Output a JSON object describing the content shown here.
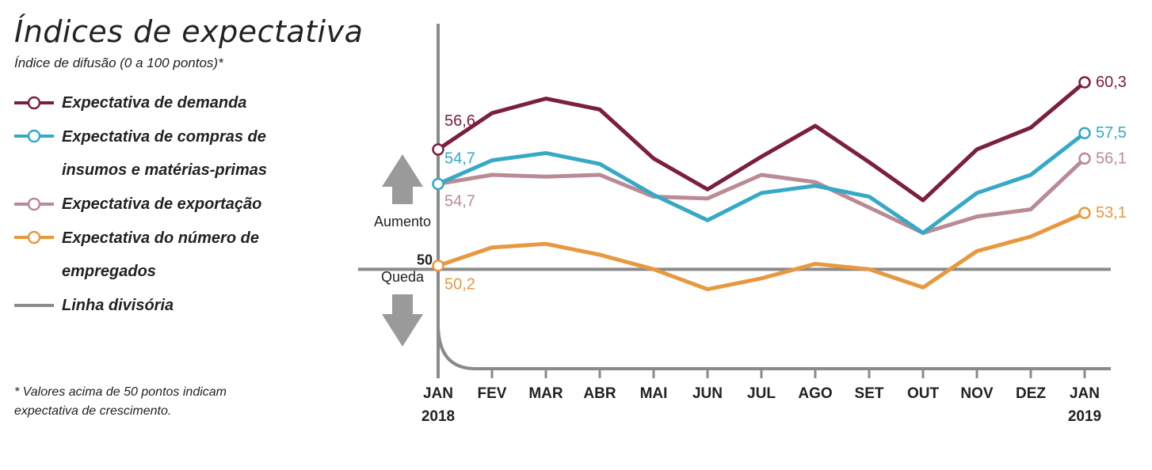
{
  "title": "Índices de expectativa",
  "subtitle": "Índice de difusão (0 a 100 pontos)*",
  "footnote": "* Valores acima de 50 pontos indicam expectativa de crescimento.",
  "legend": [
    {
      "label": "Expectativa de demanda",
      "color": "#7b1e3f"
    },
    {
      "label": "Expectativa de compras de insumos e matérias-primas",
      "color": "#36a9c6"
    },
    {
      "label": "Expectativa de exportação",
      "color": "#b98b94"
    },
    {
      "label": "Expectativa do número de empregados",
      "color": "#e8983e"
    },
    {
      "label": "Linha divisória",
      "color": "#8a8a8a"
    }
  ],
  "annotations": {
    "up": "Aumento",
    "down": "Queda",
    "fifty": "50"
  },
  "chart_data": {
    "type": "line",
    "x": [
      "JAN",
      "FEV",
      "MAR",
      "ABR",
      "MAI",
      "JUN",
      "JUL",
      "AGO",
      "SET",
      "OUT",
      "NOV",
      "DEZ",
      "JAN"
    ],
    "x_sub": [
      "2018",
      "",
      "",
      "",
      "",
      "",
      "",
      "",
      "",
      "",
      "",
      "",
      "2019"
    ],
    "divider": 50,
    "ylim": [
      44,
      63
    ],
    "grid": false,
    "legend_position": "left",
    "series": [
      {
        "name": "Expectativa de demanda",
        "color": "#7b1e3f",
        "values": [
          56.6,
          58.6,
          59.4,
          58.8,
          56.1,
          54.4,
          56.2,
          57.9,
          55.9,
          53.8,
          56.6,
          57.8,
          60.3
        ],
        "label_start": "56,6",
        "label_end": "60,3"
      },
      {
        "name": "Expectativa de compras de insumos e matérias-primas",
        "color": "#36a9c6",
        "values": [
          54.7,
          56.0,
          56.4,
          55.8,
          54.1,
          52.7,
          54.2,
          54.6,
          54.0,
          52.0,
          54.2,
          55.2,
          57.5
        ],
        "label_start": "54,7",
        "label_end": "57,5"
      },
      {
        "name": "Expectativa de exportação",
        "color": "#b98b94",
        "values": [
          54.7,
          55.2,
          55.1,
          55.2,
          54.0,
          53.9,
          55.2,
          54.8,
          53.4,
          52.0,
          52.9,
          53.3,
          56.1
        ],
        "label_start": "54,7",
        "label_end": "56,1"
      },
      {
        "name": "Expectativa do número de empregados",
        "color": "#e8983e",
        "values": [
          50.2,
          51.2,
          51.4,
          50.8,
          50.0,
          48.9,
          49.5,
          50.3,
          50.0,
          49.0,
          51.0,
          51.8,
          53.1
        ],
        "label_start": "50,2",
        "label_end": "53,1"
      }
    ]
  }
}
